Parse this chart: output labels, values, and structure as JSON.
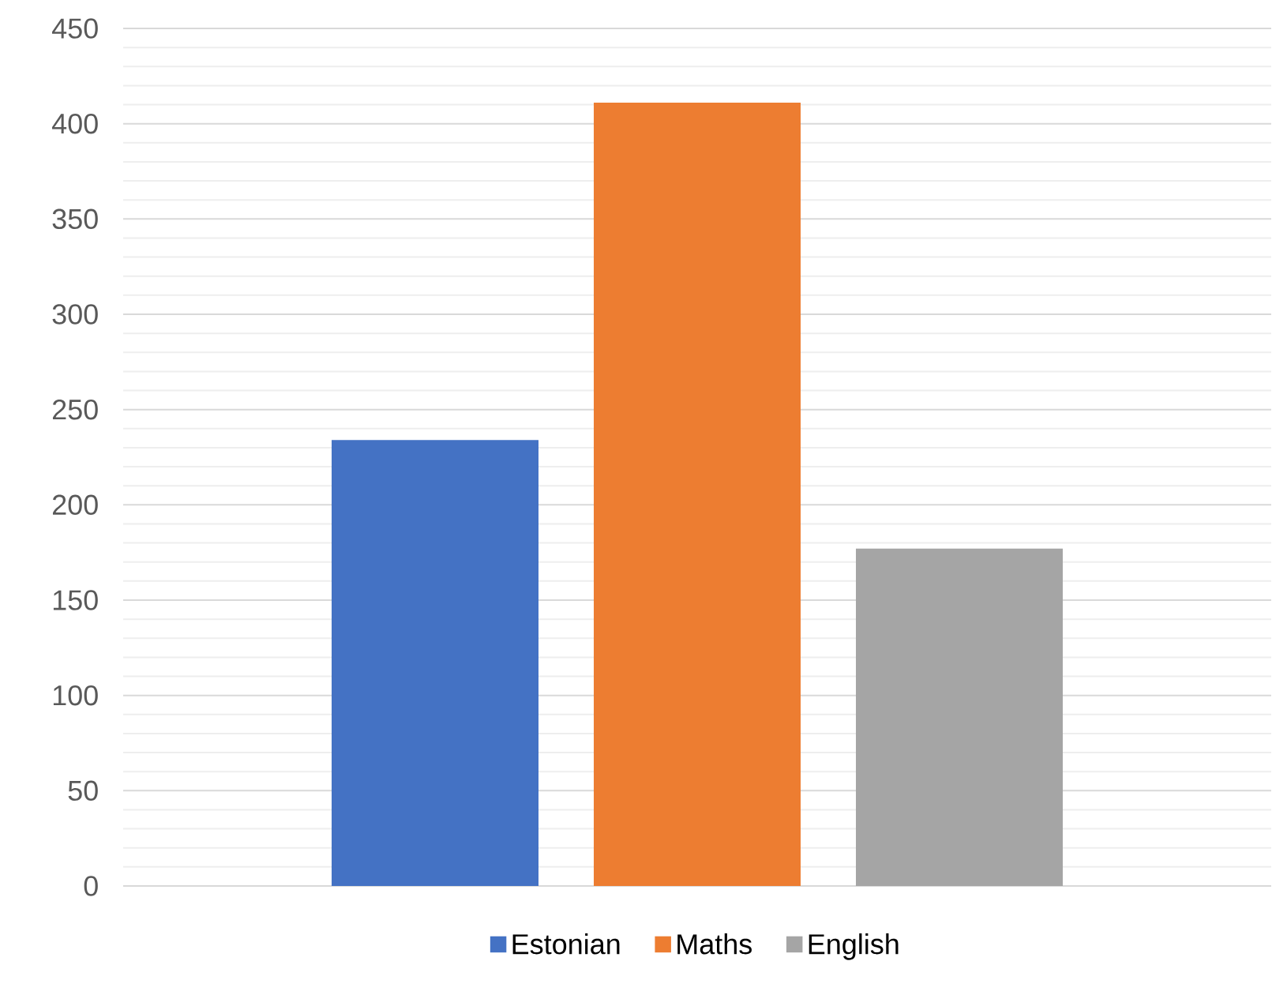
{
  "chart_data": {
    "type": "bar",
    "categories": [
      null
    ],
    "series": [
      {
        "name": "Estonian",
        "color": "#4472c4",
        "values": [
          234
        ]
      },
      {
        "name": "Maths",
        "color": "#ed7d31",
        "values": [
          411
        ]
      },
      {
        "name": "English",
        "color": "#a5a5a5",
        "values": [
          177
        ]
      }
    ],
    "ylim": [
      0,
      450
    ],
    "yticks": [
      0,
      {
        "value": 10,
        "label": null
      },
      {
        "value": 20,
        "label": null
      },
      {
        "value": 30,
        "label": null
      },
      {
        "value": 40,
        "label": null
      },
      50,
      {
        "value": 60,
        "label": null
      },
      {
        "value": 70,
        "label": null
      },
      {
        "value": 80,
        "label": null
      },
      {
        "value": 90,
        "label": null
      },
      100,
      {
        "value": 110,
        "label": null
      },
      {
        "value": 120,
        "label": null
      },
      {
        "value": 130,
        "label": null
      },
      {
        "value": 140,
        "label": null
      },
      150,
      {
        "value": 160,
        "label": null
      },
      {
        "value": 170,
        "label": null
      },
      {
        "value": 180,
        "label": null
      },
      {
        "value": 190,
        "label": null
      },
      200,
      {
        "value": 210,
        "label": null
      },
      {
        "value": 220,
        "label": null
      },
      {
        "value": 230,
        "label": null
      },
      {
        "value": 240,
        "label": null
      },
      250,
      {
        "value": 260,
        "label": null
      },
      {
        "value": 270,
        "label": null
      },
      {
        "value": 280,
        "label": null
      },
      {
        "value": 290,
        "label": null
      },
      300,
      {
        "value": 310,
        "label": null
      },
      {
        "value": 320,
        "label": null
      },
      {
        "value": 330,
        "label": null
      },
      {
        "value": 340,
        "label": null
      },
      350,
      {
        "value": 360,
        "label": null
      },
      {
        "value": 370,
        "label": null
      },
      {
        "value": 380,
        "label": null
      },
      {
        "value": 390,
        "label": null
      },
      400,
      {
        "value": 410,
        "label": null
      },
      {
        "value": 420,
        "label": null
      },
      {
        "value": 430,
        "label": null
      },
      {
        "value": 440,
        "label": null
      },
      450
    ],
    "grid": "y",
    "legend": "bottom"
  }
}
